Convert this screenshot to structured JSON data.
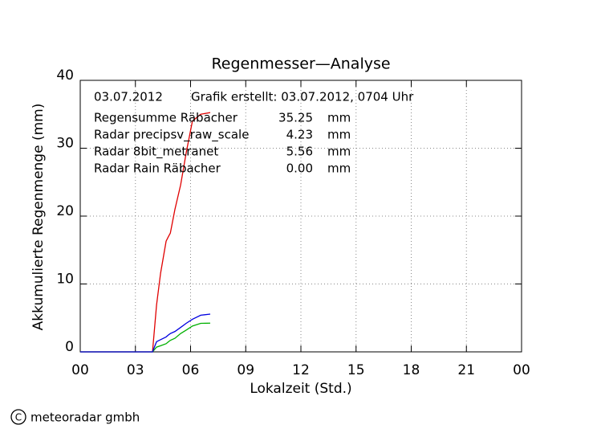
{
  "chart_data": {
    "type": "line",
    "title": "Regenmesser—Analyse",
    "date": "03.07.2012",
    "created": "Grafik erstellt: 03.07.2012, 0704 Uhr",
    "x_label": "Lokalzeit (Std.)",
    "y_label": "Akkumulierte Regenmenge (mm)",
    "footer": "meteoradar gmbh",
    "logo_symbol": "C",
    "x": [
      0,
      3.93,
      4.15,
      4.37,
      4.67,
      4.8,
      4.9,
      5.15,
      5.46,
      5.76,
      6.1,
      6.55,
      7.07
    ],
    "series": [
      {
        "name": "Regensumme Räbacher",
        "color": "#e00000",
        "legend_value": "35.25",
        "legend_unit": "mm",
        "values": [
          0,
          0,
          6.9,
          11.6,
          16.3,
          17,
          17.5,
          21,
          24.6,
          29.3,
          34,
          35,
          35.25
        ]
      },
      {
        "name": "Radar precipsv_raw_scale",
        "color": "#00b000",
        "legend_value": "4.23",
        "legend_unit": "mm",
        "values": [
          0,
          0,
          0.7,
          0.9,
          1.2,
          1.5,
          1.7,
          2.0,
          2.7,
          3.2,
          3.8,
          4.2,
          4.23
        ]
      },
      {
        "name": "Radar 8bit_metranet",
        "color": "#0000e0",
        "legend_value": "5.56",
        "legend_unit": "mm",
        "values": [
          0,
          0,
          1.5,
          1.8,
          2.2,
          2.5,
          2.7,
          3.0,
          3.6,
          4.2,
          4.8,
          5.4,
          5.56
        ]
      },
      {
        "name": "Radar Rain Räbacher",
        "color": "#f0a030",
        "legend_value": "0.00",
        "legend_unit": "mm",
        "values": [
          null,
          null,
          null,
          null,
          null,
          null,
          null,
          null,
          null,
          null,
          null,
          null,
          null
        ]
      }
    ],
    "xlim": [
      0,
      24
    ],
    "xticks": [
      {
        "value": 0,
        "label": "00"
      },
      {
        "value": 3,
        "label": "03"
      },
      {
        "value": 6,
        "label": "06"
      },
      {
        "value": 9,
        "label": "09"
      },
      12,
      15,
      18,
      21,
      {
        "value": 24,
        "label": "00"
      }
    ],
    "ylim": [
      0,
      40
    ],
    "yticks": [
      0,
      10,
      20,
      30,
      40
    ],
    "grid": true
  }
}
